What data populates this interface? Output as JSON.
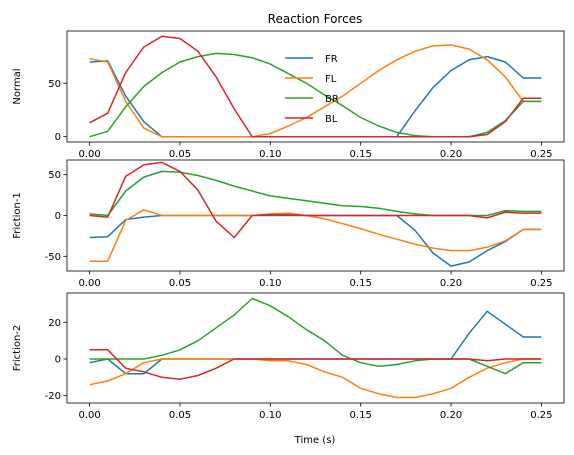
{
  "chart_data": {
    "type": "line",
    "title": "Reaction Forces",
    "xlabel": "Time (s)",
    "x": [
      0.0,
      0.01,
      0.02,
      0.03,
      0.04,
      0.05,
      0.06,
      0.07,
      0.08,
      0.09,
      0.1,
      0.11,
      0.12,
      0.13,
      0.14,
      0.15,
      0.16,
      0.17,
      0.18,
      0.19,
      0.2,
      0.21,
      0.22,
      0.23,
      0.24,
      0.25
    ],
    "xlim": [
      -0.0125,
      0.2625
    ],
    "xticks": [
      "0.00",
      "0.05",
      "0.10",
      "0.15",
      "0.20",
      "0.25"
    ],
    "legend": {
      "placement": "upper-center",
      "entries": [
        "FR",
        "FL",
        "BR",
        "BL"
      ]
    },
    "colors": {
      "FR": "#1f77b4",
      "FL": "#ff7f0e",
      "BR": "#2ca02c",
      "BL": "#d62728"
    },
    "subplots": [
      {
        "ylabel": "Normal",
        "ylim": [
          -5,
          99
        ],
        "yticks": [
          "0",
          "50"
        ],
        "series": [
          {
            "name": "FR",
            "values": [
              70,
              71,
              38,
              14,
              0,
              0,
              0,
              0,
              0,
              0,
              0,
              0,
              0,
              0,
              0,
              0,
              0,
              0,
              24,
              46,
              62,
              72,
              75,
              70,
              55,
              55
            ]
          },
          {
            "name": "FL",
            "values": [
              73,
              70,
              33,
              8,
              0,
              0,
              0,
              0,
              0,
              0,
              3,
              10,
              18,
              28,
              38,
              50,
              62,
              72,
              80,
              85,
              86,
              82,
              72,
              56,
              33,
              33
            ]
          },
          {
            "name": "BR",
            "values": [
              0,
              5,
              28,
              47,
              60,
              70,
              75,
              78,
              77,
              74,
              68,
              59,
              50,
              39,
              29,
              18,
              10,
              4,
              1,
              0,
              0,
              0,
              4,
              15,
              33,
              33
            ]
          },
          {
            "name": "BL",
            "values": [
              13,
              22,
              60,
              84,
              94,
              92,
              80,
              56,
              26,
              0,
              0,
              0,
              0,
              0,
              0,
              0,
              0,
              0,
              0,
              0,
              0,
              0,
              2,
              14,
              36,
              36
            ]
          }
        ]
      },
      {
        "ylabel": "Friction-1",
        "ylim": [
          -68,
          68
        ],
        "yticks": [
          "-50",
          "0",
          "50"
        ],
        "series": [
          {
            "name": "FR",
            "values": [
              -27,
              -26,
              -5,
              -2,
              0,
              0,
              0,
              0,
              0,
              0,
              0,
              0,
              0,
              0,
              0,
              0,
              0,
              0,
              -18,
              -46,
              -62,
              -57,
              -43,
              -32,
              -17,
              -17
            ]
          },
          {
            "name": "FL",
            "values": [
              -56,
              -56,
              -6,
              7,
              0,
              0,
              0,
              0,
              0,
              0,
              2,
              3,
              0,
              -4,
              -10,
              -16,
              -23,
              -29,
              -35,
              -40,
              -43,
              -43,
              -39,
              -31,
              -17,
              -17
            ]
          },
          {
            "name": "BR",
            "values": [
              2,
              0,
              30,
              47,
              54,
              53,
              49,
              43,
              36,
              30,
              24,
              21,
              18,
              15,
              12,
              11,
              9,
              5,
              2,
              0,
              0,
              0,
              0,
              6,
              5,
              5
            ]
          },
          {
            "name": "BL",
            "values": [
              0,
              -2,
              48,
              62,
              65,
              54,
              31,
              -7,
              -27,
              0,
              1,
              1,
              0,
              0,
              0,
              0,
              0,
              0,
              0,
              0,
              0,
              0,
              -3,
              4,
              3,
              3
            ]
          }
        ]
      },
      {
        "ylabel": "Friction-2",
        "ylim": [
          -24,
          36
        ],
        "yticks": [
          "-20",
          "0",
          "20"
        ],
        "series": [
          {
            "name": "FR",
            "values": [
              -2,
              0,
              -8,
              -8,
              0,
              0,
              0,
              0,
              0,
              0,
              0,
              0,
              0,
              0,
              0,
              0,
              0,
              0,
              0,
              0,
              0,
              14,
              26,
              19,
              12,
              12
            ]
          },
          {
            "name": "FL",
            "values": [
              -14,
              -12,
              -8,
              -2,
              0,
              0,
              0,
              0,
              0,
              0,
              -1,
              -1,
              -3,
              -7,
              -10,
              -16,
              -19,
              -21,
              -21,
              -19,
              -16,
              -10,
              -5,
              -2,
              0,
              0
            ]
          },
          {
            "name": "BR",
            "values": [
              0,
              0,
              0,
              0,
              2,
              5,
              10,
              17,
              24,
              33,
              29,
              23,
              16,
              10,
              2,
              -2,
              -4,
              -3,
              -1,
              0,
              0,
              0,
              -4,
              -8,
              -2,
              -2
            ]
          },
          {
            "name": "BL",
            "values": [
              5,
              5,
              -5,
              -7,
              -10,
              -11,
              -9,
              -5,
              0,
              0,
              0,
              0,
              0,
              0,
              0,
              0,
              0,
              0,
              0,
              0,
              0,
              0,
              -1,
              0,
              0,
              0
            ]
          }
        ]
      }
    ]
  }
}
